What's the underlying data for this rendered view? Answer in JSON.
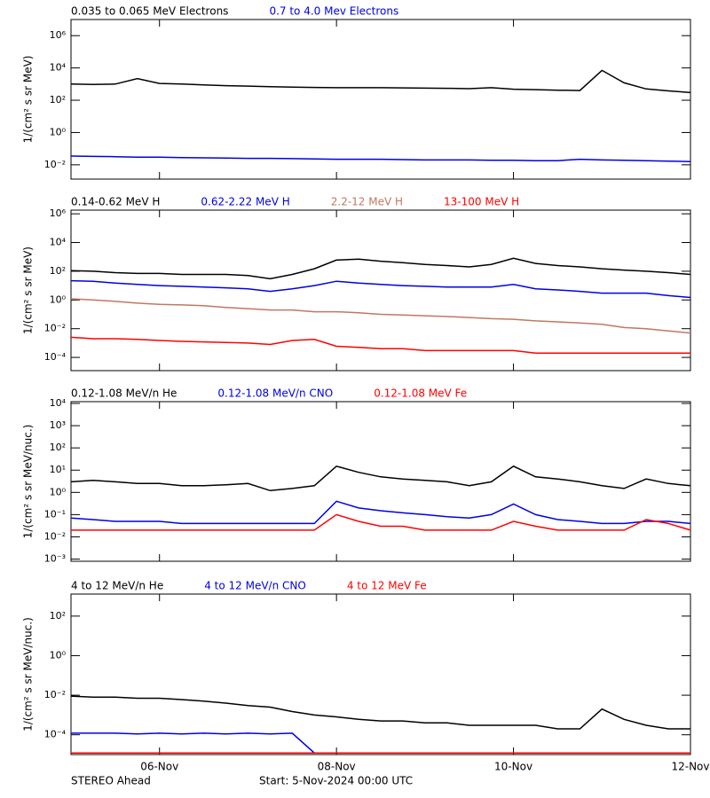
{
  "chart_data": [
    {
      "type": "line",
      "ylabel": "1/(cm² s sr MeV)",
      "log_y": true,
      "x": [
        0,
        0.25,
        0.5,
        0.75,
        1,
        1.25,
        1.5,
        1.75,
        2,
        2.25,
        2.5,
        2.75,
        3,
        3.25,
        3.5,
        3.75,
        4,
        4.25,
        4.5,
        4.75,
        5,
        5.25,
        5.5,
        5.75,
        6,
        6.25,
        6.5,
        6.75,
        7
      ],
      "xlim": [
        0,
        7
      ],
      "xticks": [
        1,
        3,
        5,
        7
      ],
      "ylim": [
        0.0013,
        10000000
      ],
      "yticks": [
        {
          "value": 0.01,
          "label": "10⁻²"
        },
        {
          "value": 1,
          "label": "10⁰"
        },
        {
          "value": 100,
          "label": "10²"
        },
        {
          "value": 10000,
          "label": "10⁴"
        },
        {
          "value": 1000000,
          "label": "10⁶"
        }
      ],
      "series": [
        {
          "name": "0.035 to 0.065 MeV Electrons",
          "color": "#000000",
          "values": [
            1000,
            950,
            1000,
            2200,
            1100,
            1000,
            900,
            800,
            750,
            700,
            650,
            620,
            600,
            600,
            600,
            580,
            560,
            550,
            520,
            600,
            480,
            450,
            420,
            400,
            7000,
            1200,
            500,
            380,
            300
          ]
        },
        {
          "name": "0.7 to 4.0 Mev Electrons",
          "color": "#0000e6",
          "values": [
            0.035,
            0.033,
            0.032,
            0.03,
            0.03,
            0.028,
            0.027,
            0.026,
            0.025,
            0.025,
            0.024,
            0.023,
            0.022,
            0.022,
            0.022,
            0.021,
            0.02,
            0.02,
            0.02,
            0.019,
            0.019,
            0.018,
            0.018,
            0.022,
            0.02,
            0.019,
            0.018,
            0.017,
            0.016
          ]
        }
      ]
    },
    {
      "type": "line",
      "ylabel": "1/(cm² s sr MeV)",
      "log_y": true,
      "x": [
        0,
        0.25,
        0.5,
        0.75,
        1,
        1.25,
        1.5,
        1.75,
        2,
        2.25,
        2.5,
        2.75,
        3,
        3.25,
        3.5,
        3.75,
        4,
        4.25,
        4.5,
        4.75,
        5,
        5.25,
        5.5,
        5.75,
        6,
        6.25,
        6.5,
        6.75,
        7
      ],
      "xlim": [
        0,
        7
      ],
      "xticks": [
        1,
        3,
        5,
        7
      ],
      "ylim": [
        1.2e-05,
        1800000
      ],
      "yticks": [
        {
          "value": 0.0001,
          "label": "10⁻⁴"
        },
        {
          "value": 0.01,
          "label": "10⁻²"
        },
        {
          "value": 1,
          "label": "10⁰"
        },
        {
          "value": 100,
          "label": "10²"
        },
        {
          "value": 10000,
          "label": "10⁴"
        },
        {
          "value": 1000000,
          "label": "10⁶"
        }
      ],
      "series": [
        {
          "name": "0.14-0.62 MeV H",
          "color": "#000000",
          "values": [
            110,
            100,
            80,
            70,
            70,
            60,
            60,
            60,
            50,
            30,
            60,
            150,
            600,
            700,
            500,
            400,
            300,
            250,
            200,
            300,
            800,
            350,
            250,
            200,
            150,
            120,
            100,
            80,
            60
          ]
        },
        {
          "name": "0.62-2.22 MeV H",
          "color": "#0000e6",
          "values": [
            22,
            20,
            15,
            12,
            10,
            9,
            8,
            7,
            6,
            4,
            6,
            10,
            20,
            15,
            12,
            10,
            9,
            8,
            8,
            8,
            12,
            6,
            5,
            4,
            3,
            3,
            3,
            2,
            1.5
          ]
        },
        {
          "name": "2.2-12 MeV H",
          "color": "#c07860",
          "values": [
            1.2,
            1,
            0.8,
            0.6,
            0.5,
            0.45,
            0.4,
            0.3,
            0.25,
            0.2,
            0.2,
            0.15,
            0.15,
            0.13,
            0.1,
            0.09,
            0.08,
            0.07,
            0.06,
            0.05,
            0.045,
            0.035,
            0.03,
            0.025,
            0.02,
            0.012,
            0.01,
            0.007,
            0.005
          ]
        },
        {
          "name": "13-100 MeV H",
          "color": "#ff0000",
          "values": [
            0.0025,
            0.002,
            0.002,
            0.0018,
            0.0015,
            0.0013,
            0.0012,
            0.0011,
            0.001,
            0.0008,
            0.0015,
            0.0018,
            0.0006,
            0.0005,
            0.0004,
            0.0004,
            0.0003,
            0.0003,
            0.0003,
            0.0003,
            0.0003,
            0.0002,
            0.0002,
            0.0002,
            0.0002,
            0.0002,
            0.0002,
            0.0002,
            0.0002
          ]
        }
      ]
    },
    {
      "type": "line",
      "ylabel": "1/(cm² s sr MeV/nuc.)",
      "log_y": true,
      "x": [
        0,
        0.25,
        0.5,
        0.75,
        1,
        1.25,
        1.5,
        1.75,
        2,
        2.25,
        2.5,
        2.75,
        3,
        3.25,
        3.5,
        3.75,
        4,
        4.25,
        4.5,
        4.75,
        5,
        5.25,
        5.5,
        5.75,
        6,
        6.25,
        6.5,
        6.75,
        7
      ],
      "xlim": [
        0,
        7
      ],
      "xticks": [
        1,
        3,
        5,
        7
      ],
      "ylim": [
        0.0008,
        12000
      ],
      "yticks": [
        {
          "value": 0.001,
          "label": "10⁻³"
        },
        {
          "value": 0.01,
          "label": "10⁻²"
        },
        {
          "value": 0.1,
          "label": "10⁻¹"
        },
        {
          "value": 1,
          "label": "10⁰"
        },
        {
          "value": 10,
          "label": "10¹"
        },
        {
          "value": 100,
          "label": "10²"
        },
        {
          "value": 1000,
          "label": "10³"
        },
        {
          "value": 10000,
          "label": "10⁴"
        }
      ],
      "series": [
        {
          "name": "0.12-1.08 MeV/n He",
          "color": "#000000",
          "values": [
            3,
            3.5,
            3,
            2.5,
            2.5,
            2,
            2,
            2.2,
            2.5,
            1.2,
            1.5,
            2,
            15,
            8,
            5,
            4,
            3.5,
            3,
            2,
            3,
            15,
            5,
            4,
            3,
            2,
            1.5,
            4,
            2.5,
            2
          ]
        },
        {
          "name": "0.12-1.08 MeV/n CNO",
          "color": "#0000e6",
          "values": [
            0.07,
            0.06,
            0.05,
            0.05,
            0.05,
            0.04,
            0.04,
            0.04,
            0.04,
            0.04,
            0.04,
            0.04,
            0.4,
            0.2,
            0.15,
            0.12,
            0.1,
            0.08,
            0.07,
            0.1,
            0.3,
            0.1,
            0.06,
            0.05,
            0.04,
            0.04,
            0.05,
            0.05,
            0.04
          ]
        },
        {
          "name": "0.12-1.08 MeV Fe",
          "color": "#ff0000",
          "values": [
            0.02,
            0.02,
            0.02,
            0.02,
            0.02,
            0.02,
            0.02,
            0.02,
            0.02,
            0.02,
            0.02,
            0.02,
            0.1,
            0.05,
            0.03,
            0.03,
            0.02,
            0.02,
            0.02,
            0.02,
            0.05,
            0.03,
            0.02,
            0.02,
            0.02,
            0.02,
            0.06,
            0.04,
            0.02
          ]
        }
      ]
    },
    {
      "type": "line",
      "ylabel": "1/(cm² s sr MeV/nuc.)",
      "log_y": true,
      "x": [
        0,
        0.25,
        0.5,
        0.75,
        1,
        1.25,
        1.5,
        1.75,
        2,
        2.25,
        2.5,
        2.75,
        3,
        3.25,
        3.5,
        3.75,
        4,
        4.25,
        4.5,
        4.75,
        5,
        5.25,
        5.5,
        5.75,
        6,
        6.25,
        6.5,
        6.75,
        7
      ],
      "xlim": [
        0,
        7
      ],
      "xticks": [
        {
          "value": 1,
          "label": "06-Nov"
        },
        {
          "value": 3,
          "label": "08-Nov"
        },
        {
          "value": 5,
          "label": "10-Nov"
        },
        {
          "value": 7,
          "label": "12-Nov"
        }
      ],
      "ylim": [
        1e-05,
        1300
      ],
      "yticks": [
        {
          "value": 0.0001,
          "label": "10⁻⁴"
        },
        {
          "value": 0.01,
          "label": "10⁻²"
        },
        {
          "value": 1,
          "label": "10⁰"
        },
        {
          "value": 100,
          "label": "10²"
        }
      ],
      "series": [
        {
          "name": "4 to 12 MeV/n He",
          "color": "#000000",
          "values": [
            0.009,
            0.008,
            0.008,
            0.007,
            0.007,
            0.006,
            0.005,
            0.004,
            0.003,
            0.0025,
            0.0015,
            0.001,
            0.0008,
            0.0006,
            0.0005,
            0.0005,
            0.0004,
            0.0004,
            0.0003,
            0.0003,
            0.0003,
            0.0003,
            0.0002,
            0.0002,
            0.002,
            0.0006,
            0.0003,
            0.0002,
            0.0002
          ]
        },
        {
          "name": "4 to 12 MeV/n CNO",
          "color": "#0000e6",
          "values": [
            0.00012,
            0.00012,
            0.00012,
            0.00011,
            0.00012,
            0.00011,
            0.00012,
            0.00011,
            0.00012,
            0.00011,
            0.00012,
            1.2e-05,
            1.2e-05,
            1.2e-05,
            1.2e-05,
            1.2e-05,
            1.2e-05,
            1.2e-05,
            1.2e-05,
            1.2e-05,
            1.2e-05,
            1.2e-05,
            1.2e-05,
            1.2e-05,
            1.2e-05,
            1.2e-05,
            1.2e-05,
            1.2e-05,
            1.2e-05
          ]
        },
        {
          "name": "4 to 12 MeV Fe",
          "color": "#ff0000",
          "values": [
            1.2e-05,
            1.2e-05,
            1.2e-05,
            1.2e-05,
            1.2e-05,
            1.2e-05,
            1.2e-05,
            1.2e-05,
            1.2e-05,
            1.2e-05,
            1.2e-05,
            1.2e-05,
            1.2e-05,
            1.2e-05,
            1.2e-05,
            1.2e-05,
            1.2e-05,
            1.2e-05,
            1.2e-05,
            1.2e-05,
            1.2e-05,
            1.2e-05,
            1.2e-05,
            1.2e-05,
            1.2e-05,
            1.2e-05,
            1.2e-05,
            1.2e-05,
            1.2e-05
          ]
        }
      ]
    }
  ],
  "footer": {
    "source": "STEREO Ahead",
    "start": "Start:  5-Nov-2024 00:00 UTC"
  }
}
